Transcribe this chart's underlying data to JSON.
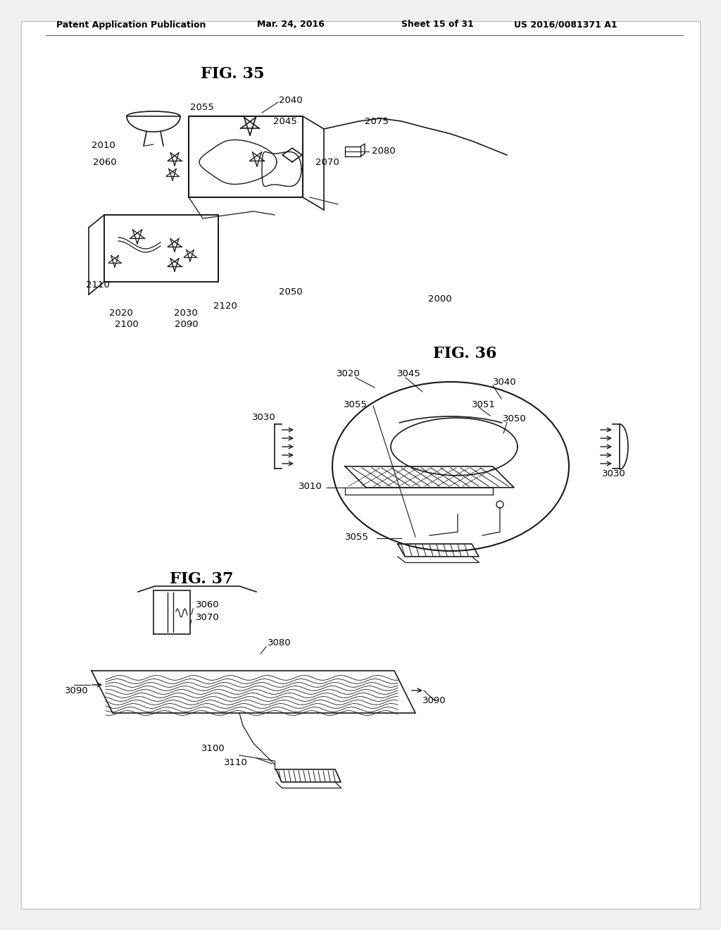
{
  "bg_color": "#f5f5f5",
  "border_color": "#bbbbbb",
  "line_color": "#1a1a1a",
  "header_text": "Patent Application Publication",
  "header_date": "Mar. 24, 2016",
  "header_sheet": "Sheet 15 of 31",
  "header_patent": "US 2016/0081371 A1",
  "fig35_title": "FIG. 35",
  "fig36_title": "FIG. 36",
  "fig37_title": "FIG. 37"
}
